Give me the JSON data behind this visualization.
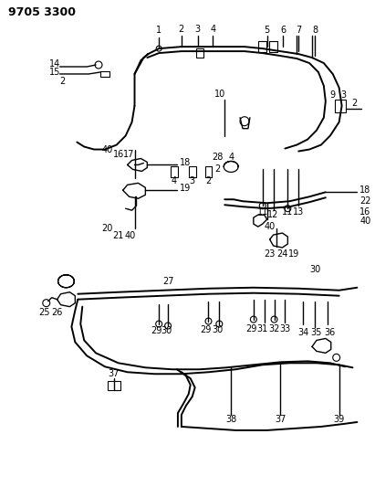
{
  "title": "9705 3300",
  "bg_color": "#ffffff",
  "line_color": "#000000",
  "title_fontsize": 9,
  "label_fontsize": 7,
  "fig_width": 4.11,
  "fig_height": 5.33,
  "dpi": 100
}
